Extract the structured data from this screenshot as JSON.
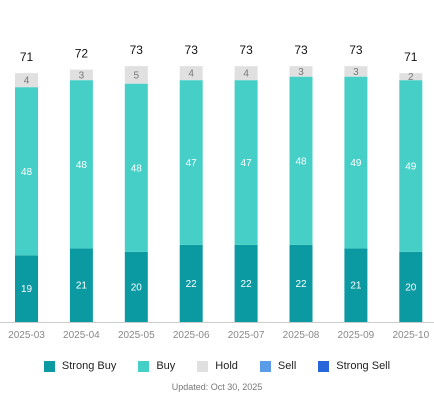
{
  "chart_data": {
    "type": "bar",
    "stacked": true,
    "categories": [
      "2025-03",
      "2025-04",
      "2025-05",
      "2025-06",
      "2025-07",
      "2025-08",
      "2025-09",
      "2025-10"
    ],
    "totals": [
      71,
      72,
      73,
      73,
      73,
      73,
      73,
      71
    ],
    "series": [
      {
        "name": "Strong Buy",
        "color": "#0b9aa2",
        "values": [
          19,
          21,
          20,
          22,
          22,
          22,
          21,
          20
        ]
      },
      {
        "name": "Buy",
        "color": "#45cfc6",
        "values": [
          48,
          48,
          48,
          47,
          47,
          48,
          49,
          49
        ]
      },
      {
        "name": "Hold",
        "color": "#e0e0e0",
        "values": [
          4,
          3,
          5,
          4,
          4,
          3,
          3,
          2
        ]
      },
      {
        "name": "Sell",
        "color": "#5b9ce8",
        "values": [
          0,
          0,
          0,
          0,
          0,
          0,
          0,
          0
        ]
      },
      {
        "name": "Strong Sell",
        "color": "#2766d8",
        "values": [
          0,
          0,
          0,
          0,
          0,
          0,
          0,
          0
        ]
      }
    ],
    "ylim": [
      0,
      80
    ],
    "grid": false,
    "legend_position": "bottom"
  },
  "footer": {
    "updated_text": "Updated: Oct 30, 2025"
  }
}
